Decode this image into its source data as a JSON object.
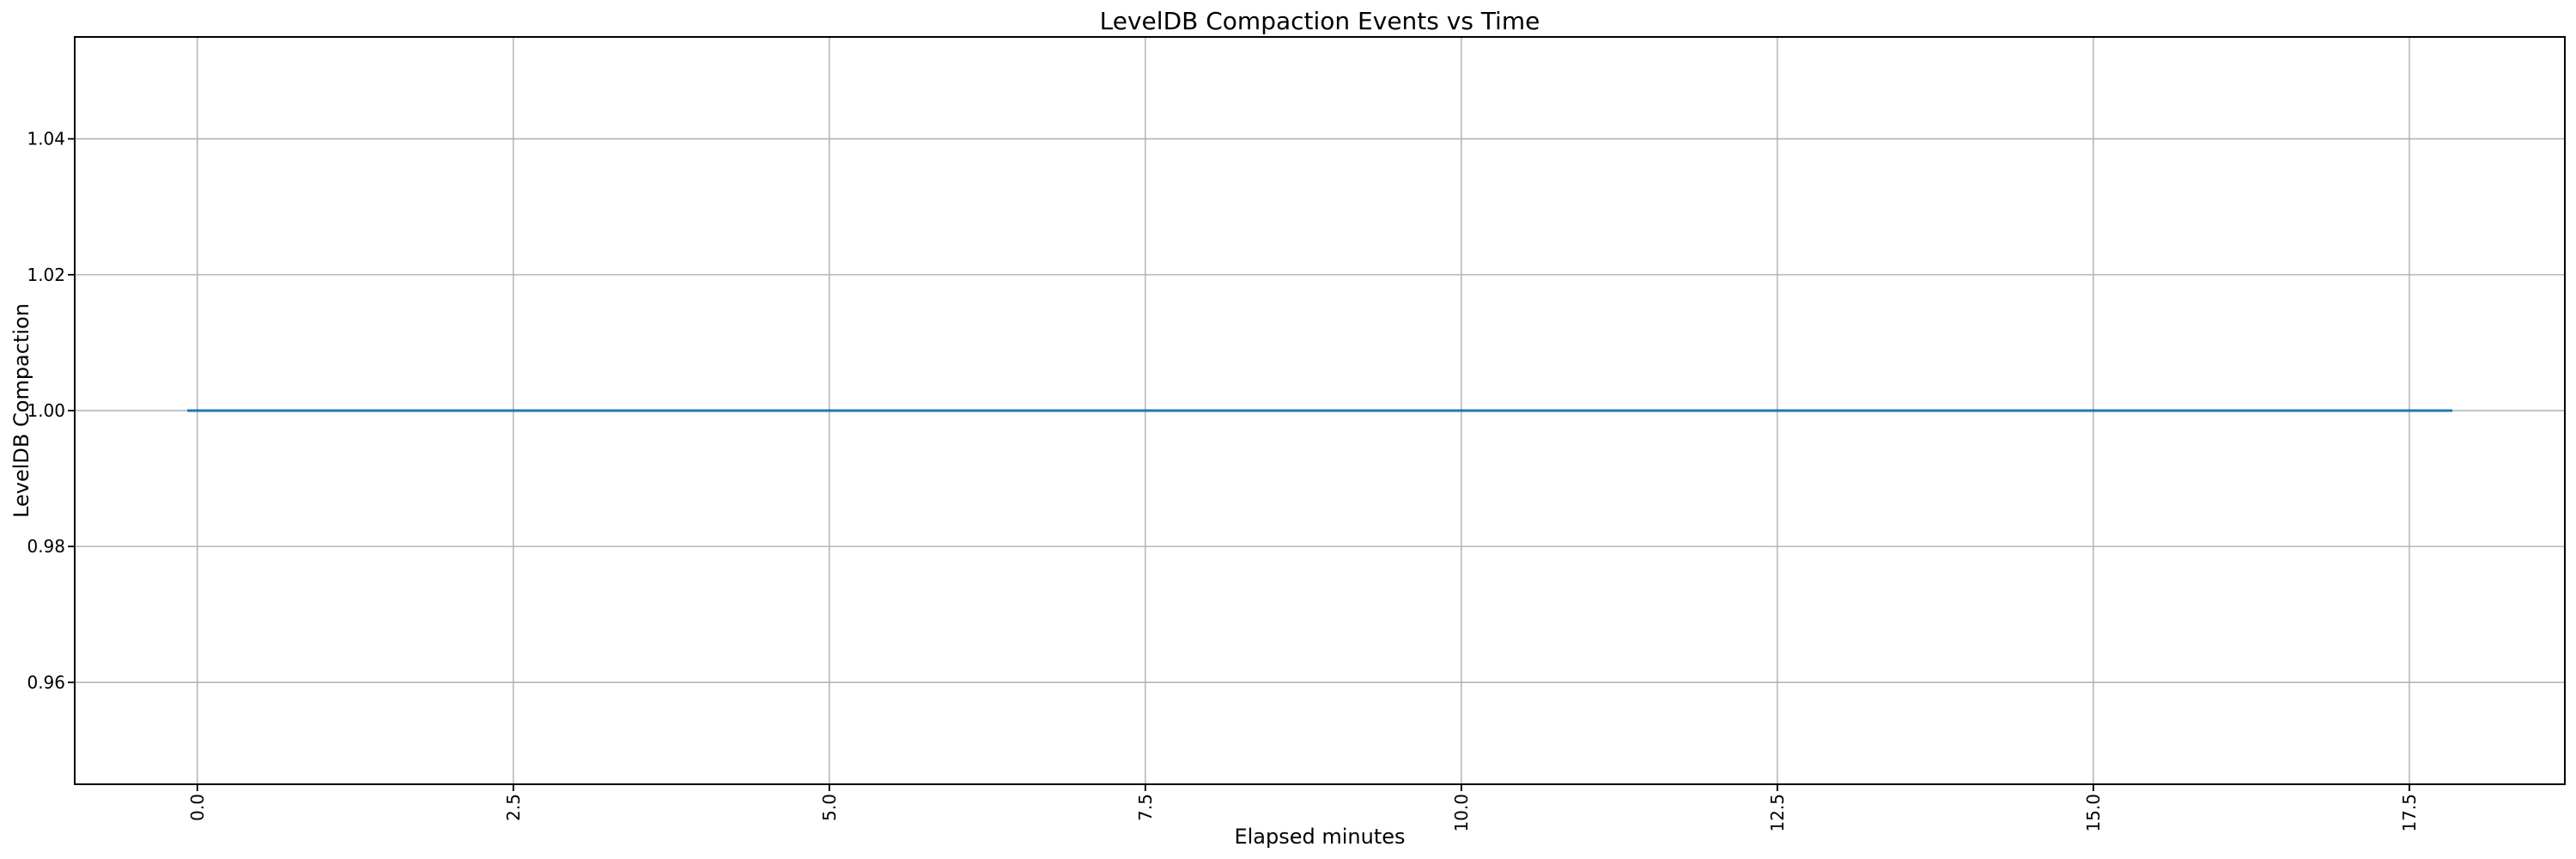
{
  "chart_data": {
    "type": "line",
    "title": "LevelDB Compaction Events vs Time",
    "xlabel": "Elapsed minutes",
    "ylabel": "LevelDB Compaction",
    "grid": true,
    "legend": false,
    "xlim": [
      -0.97,
      18.73
    ],
    "ylim": [
      0.945,
      1.055
    ],
    "xticks": [
      0.0,
      2.5,
      5.0,
      7.5,
      10.0,
      12.5,
      15.0,
      17.5
    ],
    "xtick_labels": [
      "0.0",
      "2.5",
      "5.0",
      "7.5",
      "10.0",
      "12.5",
      "15.0",
      "17.5"
    ],
    "xtick_rotation_deg": 90,
    "yticks": [
      0.96,
      0.98,
      1.0,
      1.02,
      1.04
    ],
    "ytick_labels": [
      "0.96",
      "0.98",
      "1.00",
      "1.02",
      "1.04"
    ],
    "series": [
      {
        "name": "LevelDB Compaction",
        "color": "#1f77b4",
        "x": [
          -0.08,
          17.84
        ],
        "y": [
          1.0,
          1.0
        ]
      }
    ],
    "colors": {
      "line": "#1f77b4",
      "grid": "#b0b0b0",
      "spine": "#000000",
      "text": "#000000",
      "background": "#ffffff"
    }
  }
}
